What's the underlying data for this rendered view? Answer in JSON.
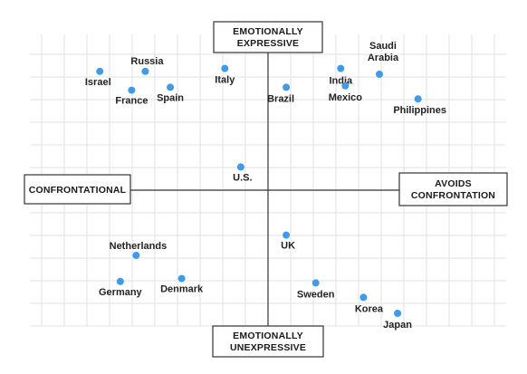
{
  "chart_data": {
    "type": "scatter",
    "x_axis": {
      "negative_label": "CONFRONTATIONAL",
      "positive_label": "AVOIDS CONFRONTATION",
      "range": [
        -10,
        10
      ]
    },
    "y_axis": {
      "positive_label": "EMOTIONALLY EXPRESSIVE",
      "negative_label": "EMOTIONALLY UNEXPRESSIVE",
      "range": [
        -10,
        10
      ]
    },
    "grid": true,
    "point_color": "#3d9be9",
    "points": [
      {
        "label": "Israel",
        "x": -7.4,
        "y": 8.2
      },
      {
        "label": "Russia",
        "x": -5.4,
        "y": 8.2
      },
      {
        "label": "France",
        "x": -6.0,
        "y": 6.9
      },
      {
        "label": "Spain",
        "x": -4.3,
        "y": 7.1
      },
      {
        "label": "Italy",
        "x": -1.9,
        "y": 8.4
      },
      {
        "label": "Brazil",
        "x": 0.8,
        "y": 7.1
      },
      {
        "label": "India",
        "x": 3.2,
        "y": 8.4
      },
      {
        "label": "Saudi Arabia",
        "x": 4.9,
        "y": 8.0
      },
      {
        "label": "Mexico",
        "x": 3.4,
        "y": 7.2
      },
      {
        "label": "Philippines",
        "x": 6.6,
        "y": 6.3
      },
      {
        "label": "U.S.",
        "x": -1.2,
        "y": 1.6
      },
      {
        "label": "UK",
        "x": 0.8,
        "y": -3.1
      },
      {
        "label": "Netherlands",
        "x": -5.8,
        "y": -4.5
      },
      {
        "label": "Germany",
        "x": -6.5,
        "y": -6.3
      },
      {
        "label": "Denmark",
        "x": -3.8,
        "y": -6.1
      },
      {
        "label": "Sweden",
        "x": 2.1,
        "y": -6.4
      },
      {
        "label": "Korea",
        "x": 4.2,
        "y": -7.4
      },
      {
        "label": "Japan",
        "x": 5.7,
        "y": -8.5
      }
    ]
  }
}
